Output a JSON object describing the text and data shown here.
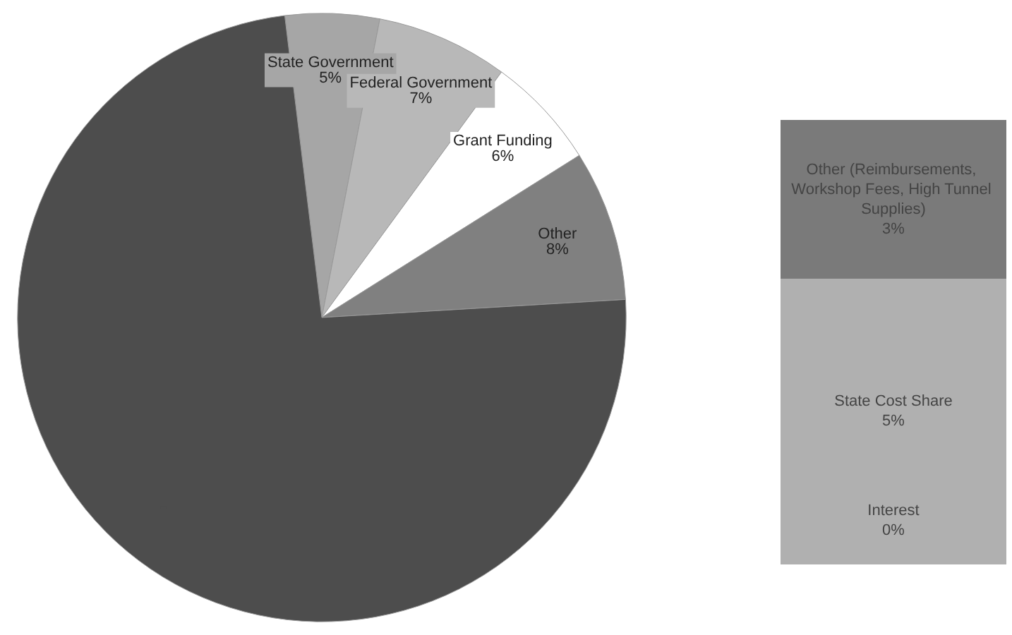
{
  "chart_data": [
    {
      "type": "pie",
      "categories": [
        "State Government",
        "Federal Government",
        "Grant Funding",
        "Other",
        null
      ],
      "values": [
        5,
        7,
        6,
        8,
        74
      ],
      "colors": [
        "#a6a6a6",
        "#b8b8b8",
        "#ffffff",
        "#808080",
        "#4d4d4d"
      ],
      "value_labels": [
        "5%",
        "7%",
        "6%",
        "8%",
        null
      ]
    },
    {
      "type": "bar",
      "stacked": true,
      "categories": [
        null
      ],
      "series": [
        {
          "name": "Interest",
          "color": "#b0b0b0",
          "values": [
            0.4
          ],
          "value_labels": [
            "0%"
          ]
        },
        {
          "name": "State Cost Share",
          "color": "#b0b0b0",
          "values": [
            5
          ],
          "value_labels": [
            "5%"
          ]
        },
        {
          "name": "Other (Reimbursements, Workshop Fees, High Tunnel Supplies)",
          "color": "#7a7a7a",
          "values": [
            3
          ],
          "value_labels": [
            "3%"
          ]
        }
      ]
    }
  ]
}
